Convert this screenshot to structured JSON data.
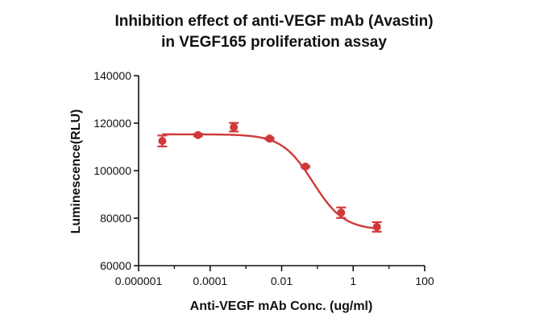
{
  "chart_data": {
    "type": "scatter",
    "title_lines": [
      "Inhibition effect of anti-VEGF mAb (Avastin)",
      "in VEGF165 proliferation assay"
    ],
    "xlabel": "Anti-VEGF mAb Conc. (ug/ml)",
    "ylabel": "Luminescence(RLU)",
    "x_scale": "log",
    "xlim": [
      1e-06,
      100
    ],
    "ylim": [
      60000,
      140000
    ],
    "x_ticks": [
      1e-06,
      0.0001,
      0.01,
      1,
      100
    ],
    "x_tick_labels": [
      "0.000001",
      "0.0001",
      "0.01",
      "1",
      "100"
    ],
    "y_ticks": [
      60000,
      80000,
      100000,
      120000,
      140000
    ],
    "y_tick_labels": [
      "60000",
      "80000",
      "100000",
      "120000",
      "140000"
    ],
    "grid": false,
    "color": "#d0393a",
    "points": [
      {
        "x": 4.6e-06,
        "y": 112500,
        "err": 2300
      },
      {
        "x": 4.6e-05,
        "y": 115000,
        "err": 500
      },
      {
        "x": 0.00046,
        "y": 118300,
        "err": 1800
      },
      {
        "x": 0.0046,
        "y": 113500,
        "err": 400
      },
      {
        "x": 0.046,
        "y": 101700,
        "err": 400
      },
      {
        "x": 0.46,
        "y": 82300,
        "err": 2200
      },
      {
        "x": 4.6,
        "y": 76300,
        "err": 2000
      }
    ],
    "fit": {
      "model": "four-parameter-logistic",
      "top": 115300,
      "bottom": 75000,
      "ec50": 0.075,
      "hill": 1.0
    }
  }
}
